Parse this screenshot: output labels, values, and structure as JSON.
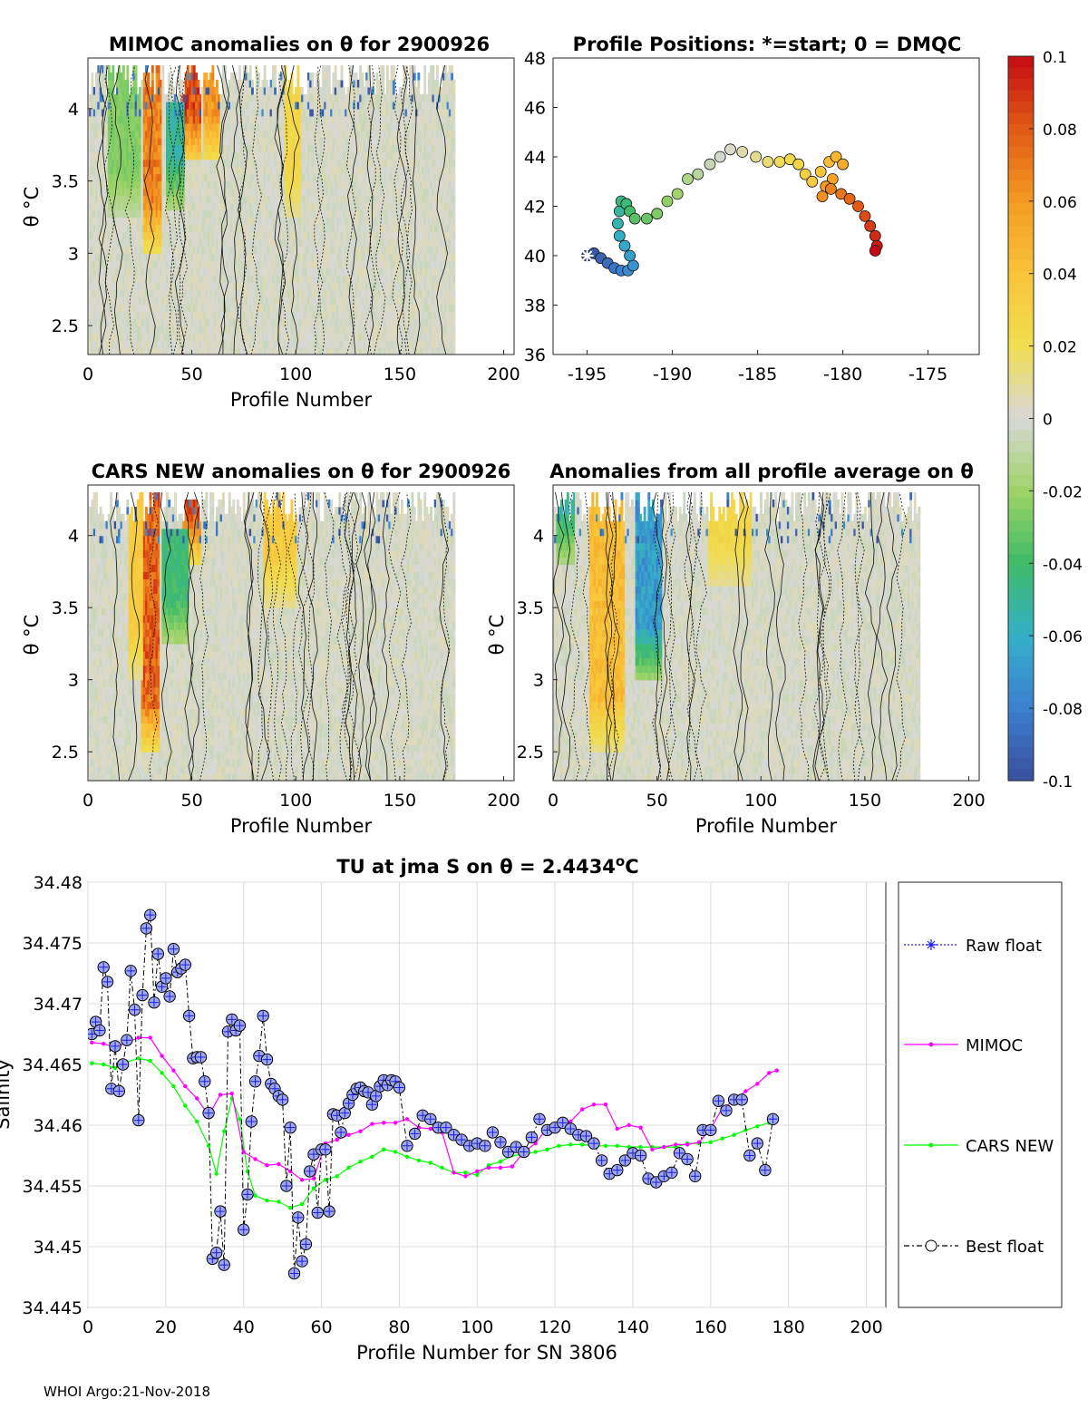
{
  "footer": "WHOI Argo:21-Nov-2018",
  "chart_data": [
    {
      "id": "mimoc",
      "type": "heatmap",
      "title": "MIMOC anomalies on θ  for 2900926",
      "xlabel": "Profile Number",
      "ylabel": "θ °C",
      "xlim": [
        0,
        205
      ],
      "ylim": [
        2.3,
        4.35
      ],
      "xticks": [
        "0",
        "50",
        "100",
        "150",
        "200"
      ],
      "yticks": [
        "2.5",
        "3",
        "3.5",
        "4"
      ],
      "features": [
        {
          "x": [
            27,
            35
          ],
          "value": 0.08,
          "theta": [
            3.0,
            4.35
          ]
        },
        {
          "x": [
            46,
            54
          ],
          "value": 0.1,
          "theta": [
            3.6,
            4.35
          ]
        },
        {
          "x": [
            56,
            63
          ],
          "value": 0.07,
          "theta": [
            3.6,
            4.35
          ]
        },
        {
          "x": [
            38,
            46
          ],
          "value": -0.06,
          "theta": [
            3.3,
            4.0
          ]
        },
        {
          "x": [
            10,
            25
          ],
          "value": -0.03,
          "theta": [
            3.2,
            4.3
          ]
        },
        {
          "x": [
            95,
            102
          ],
          "value": 0.03,
          "theta": [
            3.2,
            4.35
          ]
        }
      ]
    },
    {
      "id": "positions",
      "type": "scatter",
      "title": "Profile Positions: *=start; 0 = DMQC",
      "xlim": [
        -197,
        -172
      ],
      "ylim": [
        36,
        48
      ],
      "xticks": [
        "-195",
        "-190",
        "-185",
        "-180",
        "-175"
      ],
      "yticks": [
        "36",
        "38",
        "40",
        "42",
        "44",
        "46",
        "48"
      ],
      "track": [
        [
          -195.0,
          40.0
        ],
        [
          -194.6,
          40.1
        ],
        [
          -194.2,
          39.9
        ],
        [
          -193.8,
          39.7
        ],
        [
          -193.4,
          39.5
        ],
        [
          -193.0,
          39.4
        ],
        [
          -192.6,
          39.4
        ],
        [
          -192.3,
          39.6
        ],
        [
          -192.5,
          40.0
        ],
        [
          -192.8,
          40.4
        ],
        [
          -193.1,
          40.8
        ],
        [
          -193.2,
          41.3
        ],
        [
          -193.1,
          41.8
        ],
        [
          -193.0,
          42.2
        ],
        [
          -192.7,
          42.1
        ],
        [
          -192.5,
          41.8
        ],
        [
          -192.2,
          41.5
        ],
        [
          -191.5,
          41.5
        ],
        [
          -190.9,
          41.7
        ],
        [
          -190.3,
          42.2
        ],
        [
          -189.7,
          42.5
        ],
        [
          -189.1,
          43.1
        ],
        [
          -188.5,
          43.3
        ],
        [
          -187.8,
          43.7
        ],
        [
          -187.2,
          44.0
        ],
        [
          -186.6,
          44.3
        ],
        [
          -185.9,
          44.2
        ],
        [
          -185.1,
          44.0
        ],
        [
          -184.4,
          43.8
        ],
        [
          -183.7,
          43.8
        ],
        [
          -183.1,
          43.9
        ],
        [
          -182.6,
          43.7
        ],
        [
          -182.2,
          43.3
        ],
        [
          -181.8,
          43.0
        ],
        [
          -181.3,
          43.4
        ],
        [
          -180.8,
          43.8
        ],
        [
          -180.4,
          44.0
        ],
        [
          -180.0,
          43.7
        ],
        [
          -180.6,
          43.1
        ],
        [
          -181.0,
          42.8
        ],
        [
          -181.2,
          42.4
        ],
        [
          -180.7,
          42.7
        ],
        [
          -180.1,
          42.5
        ],
        [
          -179.6,
          42.3
        ],
        [
          -179.1,
          42.0
        ],
        [
          -178.7,
          41.6
        ],
        [
          -178.4,
          41.2
        ],
        [
          -178.1,
          40.8
        ],
        [
          -178.0,
          40.4
        ],
        [
          -178.1,
          40.2
        ]
      ]
    },
    {
      "id": "colorbar",
      "type": "heatmap",
      "range": [
        -0.1,
        0.1
      ],
      "ticks": [
        "0.1",
        "0.08",
        "0.06",
        "0.04",
        "0.02",
        "0",
        "-0.02",
        "-0.04",
        "-0.06",
        "-0.08",
        "-0.1"
      ],
      "colors": [
        "#3a4f9c",
        "#3c7fd0",
        "#34b0c8",
        "#3fbb67",
        "#9ed366",
        "#d8d8d8",
        "#f0dd50",
        "#f9c43a",
        "#f39a22",
        "#e15a15",
        "#c40a12"
      ]
    },
    {
      "id": "cars",
      "type": "heatmap",
      "title": "CARS NEW anomalies on θ for 2900926",
      "xlabel": "Profile Number",
      "ylabel": "θ °C",
      "xlim": [
        0,
        205
      ],
      "ylim": [
        2.3,
        4.35
      ],
      "xticks": [
        "0",
        "50",
        "100",
        "150",
        "200"
      ],
      "yticks": [
        "2.5",
        "3",
        "3.5",
        "4"
      ],
      "features": [
        {
          "x": [
            26,
            34
          ],
          "value": 0.09,
          "theta": [
            2.5,
            4.35
          ]
        },
        {
          "x": [
            46,
            54
          ],
          "value": 0.1,
          "theta": [
            3.8,
            4.35
          ]
        },
        {
          "x": [
            20,
            26
          ],
          "value": 0.04,
          "theta": [
            3.0,
            4.3
          ]
        },
        {
          "x": [
            36,
            48
          ],
          "value": -0.05,
          "theta": [
            3.2,
            4.0
          ]
        },
        {
          "x": [
            85,
            100
          ],
          "value": 0.04,
          "theta": [
            3.5,
            4.35
          ]
        }
      ]
    },
    {
      "id": "allavg",
      "type": "heatmap",
      "title": "Anomalies from all profile average on θ",
      "xlabel": "Profile Number",
      "ylabel": "θ °C",
      "xlim": [
        0,
        205
      ],
      "ylim": [
        2.3,
        4.35
      ],
      "xticks": [
        "0",
        "50",
        "100",
        "150",
        "200"
      ],
      "yticks": [
        "2.5",
        "3",
        "3.5",
        "4"
      ],
      "features": [
        {
          "x": [
            18,
            34
          ],
          "value": 0.05,
          "theta": [
            2.5,
            4.3
          ]
        },
        {
          "x": [
            40,
            52
          ],
          "value": -0.08,
          "theta": [
            3.0,
            4.35
          ]
        },
        {
          "x": [
            75,
            95
          ],
          "value": 0.03,
          "theta": [
            3.6,
            4.35
          ]
        },
        {
          "x": [
            2,
            10
          ],
          "value": -0.06,
          "theta": [
            3.8,
            4.35
          ]
        }
      ]
    },
    {
      "id": "salinity",
      "type": "line",
      "title": "TU at jma S on θ = 2.4434°C",
      "xlabel": "Profile Number for SN 3806",
      "ylabel": "Salinity",
      "xlim": [
        0,
        205
      ],
      "ylim": [
        34.445,
        34.48
      ],
      "xticks": [
        "0",
        "20",
        "40",
        "60",
        "80",
        "100",
        "120",
        "140",
        "160",
        "180",
        "200"
      ],
      "yticks": [
        "34.445",
        "34.45",
        "34.455",
        "34.46",
        "34.465",
        "34.47",
        "34.475",
        "34.48"
      ],
      "legend": [
        "Raw float",
        "MIMOC",
        "CARS NEW",
        "Best float"
      ],
      "series": [
        {
          "name": "Best float",
          "x": [
            1,
            2,
            3,
            4,
            5,
            6,
            7,
            8,
            9,
            10,
            11,
            12,
            13,
            14,
            15,
            16,
            17,
            18,
            19,
            20,
            21,
            22,
            23,
            24,
            25,
            26,
            27,
            28,
            29,
            30,
            31,
            32,
            33,
            34,
            35,
            36,
            37,
            38,
            39,
            40,
            41,
            42,
            43,
            44,
            45,
            46,
            47,
            48,
            49,
            50,
            51,
            52,
            53,
            54,
            55,
            56,
            57,
            58,
            59,
            60,
            61,
            62,
            63,
            64,
            65,
            66,
            67,
            68,
            69,
            70,
            71,
            72,
            73,
            74,
            75,
            76,
            77,
            78,
            79,
            80,
            82,
            84,
            86,
            88,
            90,
            92,
            94,
            96,
            98,
            100,
            102,
            104,
            106,
            108,
            110,
            112,
            114,
            116,
            118,
            120,
            122,
            124,
            126,
            128,
            130,
            132,
            134,
            136,
            138,
            140,
            142,
            144,
            146,
            148,
            150,
            152,
            154,
            156,
            158,
            160,
            162,
            164,
            166,
            168,
            170,
            172,
            174,
            176
          ],
          "values": [
            34.4675,
            34.4685,
            34.4678,
            34.473,
            34.4718,
            34.463,
            34.4665,
            34.4628,
            34.465,
            34.467,
            34.4727,
            34.4695,
            34.4604,
            34.4707,
            34.4762,
            34.4773,
            34.4701,
            34.4741,
            34.4714,
            34.4721,
            34.4706,
            34.4745,
            34.4726,
            34.4729,
            34.4732,
            34.469,
            34.4655,
            34.4656,
            34.4656,
            34.4636,
            34.461,
            34.449,
            34.4495,
            34.4529,
            34.4485,
            34.4677,
            34.4687,
            34.4678,
            34.4682,
            34.4514,
            34.4543,
            34.4603,
            34.4636,
            34.4657,
            34.469,
            34.4654,
            34.4634,
            34.463,
            34.4624,
            34.4621,
            34.455,
            34.4598,
            34.4478,
            34.4524,
            34.4488,
            34.4502,
            34.4562,
            34.4576,
            34.4528,
            34.458,
            34.458,
            34.4529,
            34.4609,
            34.4608,
            34.4594,
            34.461,
            34.4618,
            34.4625,
            34.463,
            34.4631,
            34.4628,
            34.4627,
            34.4617,
            34.4624,
            34.4632,
            34.4637,
            34.4633,
            34.4637,
            34.4636,
            34.4631,
            34.4583,
            34.4593,
            34.4608,
            34.4605,
            34.4598,
            34.4598,
            34.4592,
            34.4588,
            34.4583,
            34.4585,
            34.4583,
            34.4594,
            34.4586,
            34.4578,
            34.4582,
            34.4578,
            34.459,
            34.4605,
            34.4596,
            34.4598,
            34.4602,
            34.4597,
            34.4592,
            34.4591,
            34.4585,
            34.4571,
            34.456,
            34.4563,
            34.4571,
            34.4577,
            34.4575,
            34.4556,
            34.4553,
            34.4558,
            34.4561,
            34.4577,
            34.4572,
            34.4558,
            34.4596,
            34.4596,
            34.462,
            34.4612,
            34.4621,
            34.4621,
            34.4575,
            34.4585,
            34.4563,
            34.4605
          ]
        },
        {
          "name": "MIMOC",
          "x": [
            1,
            4,
            7,
            10,
            13,
            16,
            19,
            22,
            25,
            28,
            31,
            34,
            37,
            40,
            43,
            46,
            49,
            52,
            55,
            58,
            61,
            64,
            67,
            70,
            73,
            76,
            79,
            82,
            85,
            88,
            91,
            94,
            97,
            100,
            103,
            106,
            109,
            112,
            115,
            118,
            121,
            124,
            127,
            130,
            133,
            136,
            139,
            142,
            145,
            148,
            151,
            154,
            157,
            160,
            163,
            166,
            169,
            172,
            175,
            177
          ],
          "values": [
            34.4668,
            34.4667,
            34.4664,
            34.4668,
            34.4672,
            34.4672,
            34.4657,
            34.4645,
            34.4632,
            34.4622,
            34.4608,
            34.4625,
            34.4626,
            34.4578,
            34.4572,
            34.4567,
            34.4568,
            34.4562,
            34.4555,
            34.4556,
            34.4585,
            34.4588,
            34.4592,
            34.4595,
            34.4601,
            34.4602,
            34.4602,
            34.4605,
            34.4598,
            34.4597,
            34.4594,
            34.4561,
            34.4558,
            34.4562,
            34.4565,
            34.4565,
            34.4566,
            34.4578,
            34.4585,
            34.4598,
            34.4598,
            34.4603,
            34.4613,
            34.4617,
            34.4617,
            34.4597,
            34.46,
            34.4598,
            34.458,
            34.4582,
            34.4584,
            34.4584,
            34.4586,
            34.4597,
            34.4614,
            34.462,
            34.4628,
            34.4634,
            34.4643,
            34.4645
          ]
        },
        {
          "name": "CARS NEW",
          "x": [
            1,
            4,
            7,
            10,
            13,
            16,
            19,
            22,
            25,
            28,
            31,
            33,
            35,
            37,
            39,
            41,
            43,
            46,
            49,
            52,
            55,
            58,
            61,
            64,
            67,
            70,
            73,
            76,
            79,
            82,
            85,
            88,
            91,
            94,
            97,
            100,
            103,
            106,
            109,
            112,
            115,
            118,
            121,
            124,
            127,
            130,
            133,
            136,
            139,
            142,
            145,
            148,
            151,
            154,
            157,
            160,
            163,
            166,
            169,
            172,
            175,
            177
          ],
          "values": [
            34.4651,
            34.465,
            34.4647,
            34.4652,
            34.4655,
            34.4653,
            34.4643,
            34.4632,
            34.4616,
            34.4603,
            34.4583,
            34.456,
            34.4595,
            34.4622,
            34.4605,
            34.4562,
            34.4542,
            34.4538,
            34.4537,
            34.4532,
            34.4535,
            34.4548,
            34.4555,
            34.4558,
            34.4565,
            34.457,
            34.4574,
            34.458,
            34.4578,
            34.4574,
            34.4571,
            34.4569,
            34.4565,
            34.4561,
            34.4561,
            34.4559,
            34.4567,
            34.457,
            34.4575,
            34.4576,
            34.4578,
            34.458,
            34.4583,
            34.4584,
            34.4584,
            34.4583,
            34.4583,
            34.4583,
            34.4582,
            34.4582,
            34.4582,
            34.4582,
            34.4582,
            34.4585,
            34.4585,
            34.4586,
            34.4589,
            34.4592,
            34.4596,
            34.4599,
            34.4602,
            34.4605
          ]
        }
      ]
    }
  ]
}
